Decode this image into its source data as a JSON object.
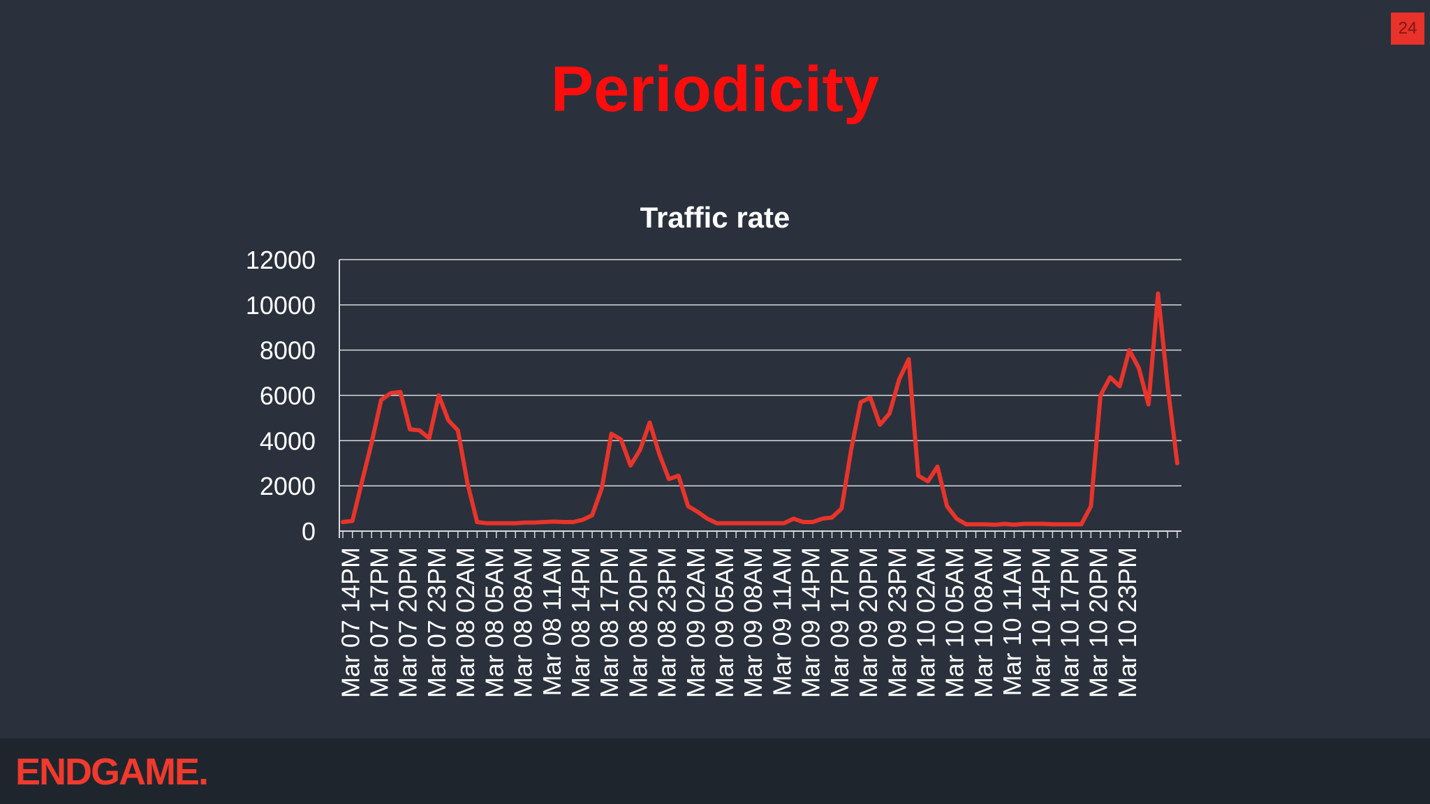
{
  "slide": {
    "title": "Periodicity",
    "number": "24",
    "brand": "ENDGAME."
  },
  "colors": {
    "background": "#2a313c",
    "footer": "#1f252d",
    "accent": "#ff0d0d",
    "series": "#e8342b",
    "text": "#ffffff"
  },
  "chart_data": {
    "type": "line",
    "title": "Traffic rate",
    "xlabel": "",
    "ylabel": "",
    "ylim": [
      0,
      12000
    ],
    "yticks": [
      0,
      2000,
      4000,
      6000,
      8000,
      10000,
      12000
    ],
    "grid": true,
    "legend": "none",
    "tick_labels": [
      "Mar 07 14PM",
      "Mar 07 17PM",
      "Mar 07 20PM",
      "Mar 07 23PM",
      "Mar 08 02AM",
      "Mar 08 05AM",
      "Mar 08 08AM",
      "Mar 08 11AM",
      "Mar 08 14PM",
      "Mar 08 17PM",
      "Mar 08 20PM",
      "Mar 08 23PM",
      "Mar 09 02AM",
      "Mar 09 05AM",
      "Mar 09 08AM",
      "Mar 09 11AM",
      "Mar 09 14PM",
      "Mar 09 17PM",
      "Mar 09 20PM",
      "Mar 09 23PM",
      "Mar 10 02AM",
      "Mar 10 05AM",
      "Mar 10 08AM",
      "Mar 10 11AM",
      "Mar 10 14PM",
      "Mar 10 17PM",
      "Mar 10 20PM",
      "Mar 10 23PM"
    ],
    "series": [
      {
        "values": [
          400,
          450,
          2200,
          3900,
          5800,
          6100,
          6150,
          4500,
          4450,
          4100,
          6000,
          4900,
          4450,
          2100,
          400,
          350,
          350,
          350,
          350,
          380,
          380,
          400,
          420,
          400,
          400,
          500,
          700,
          1900,
          4300,
          4050,
          2900,
          3600,
          4800,
          3400,
          2300,
          2450,
          1100,
          850,
          550,
          350,
          350,
          350,
          350,
          350,
          350,
          350,
          350,
          550,
          400,
          400,
          550,
          600,
          1000,
          3600,
          5700,
          5900,
          4700,
          5200,
          6700,
          7600,
          2450,
          2200,
          2850,
          1100,
          550,
          300,
          300,
          300,
          280,
          320,
          280,
          320,
          320,
          320,
          300,
          300,
          300,
          300,
          1100,
          6000,
          6800,
          6400,
          8000,
          7200,
          5600,
          10500,
          6400,
          3000
        ]
      }
    ]
  }
}
